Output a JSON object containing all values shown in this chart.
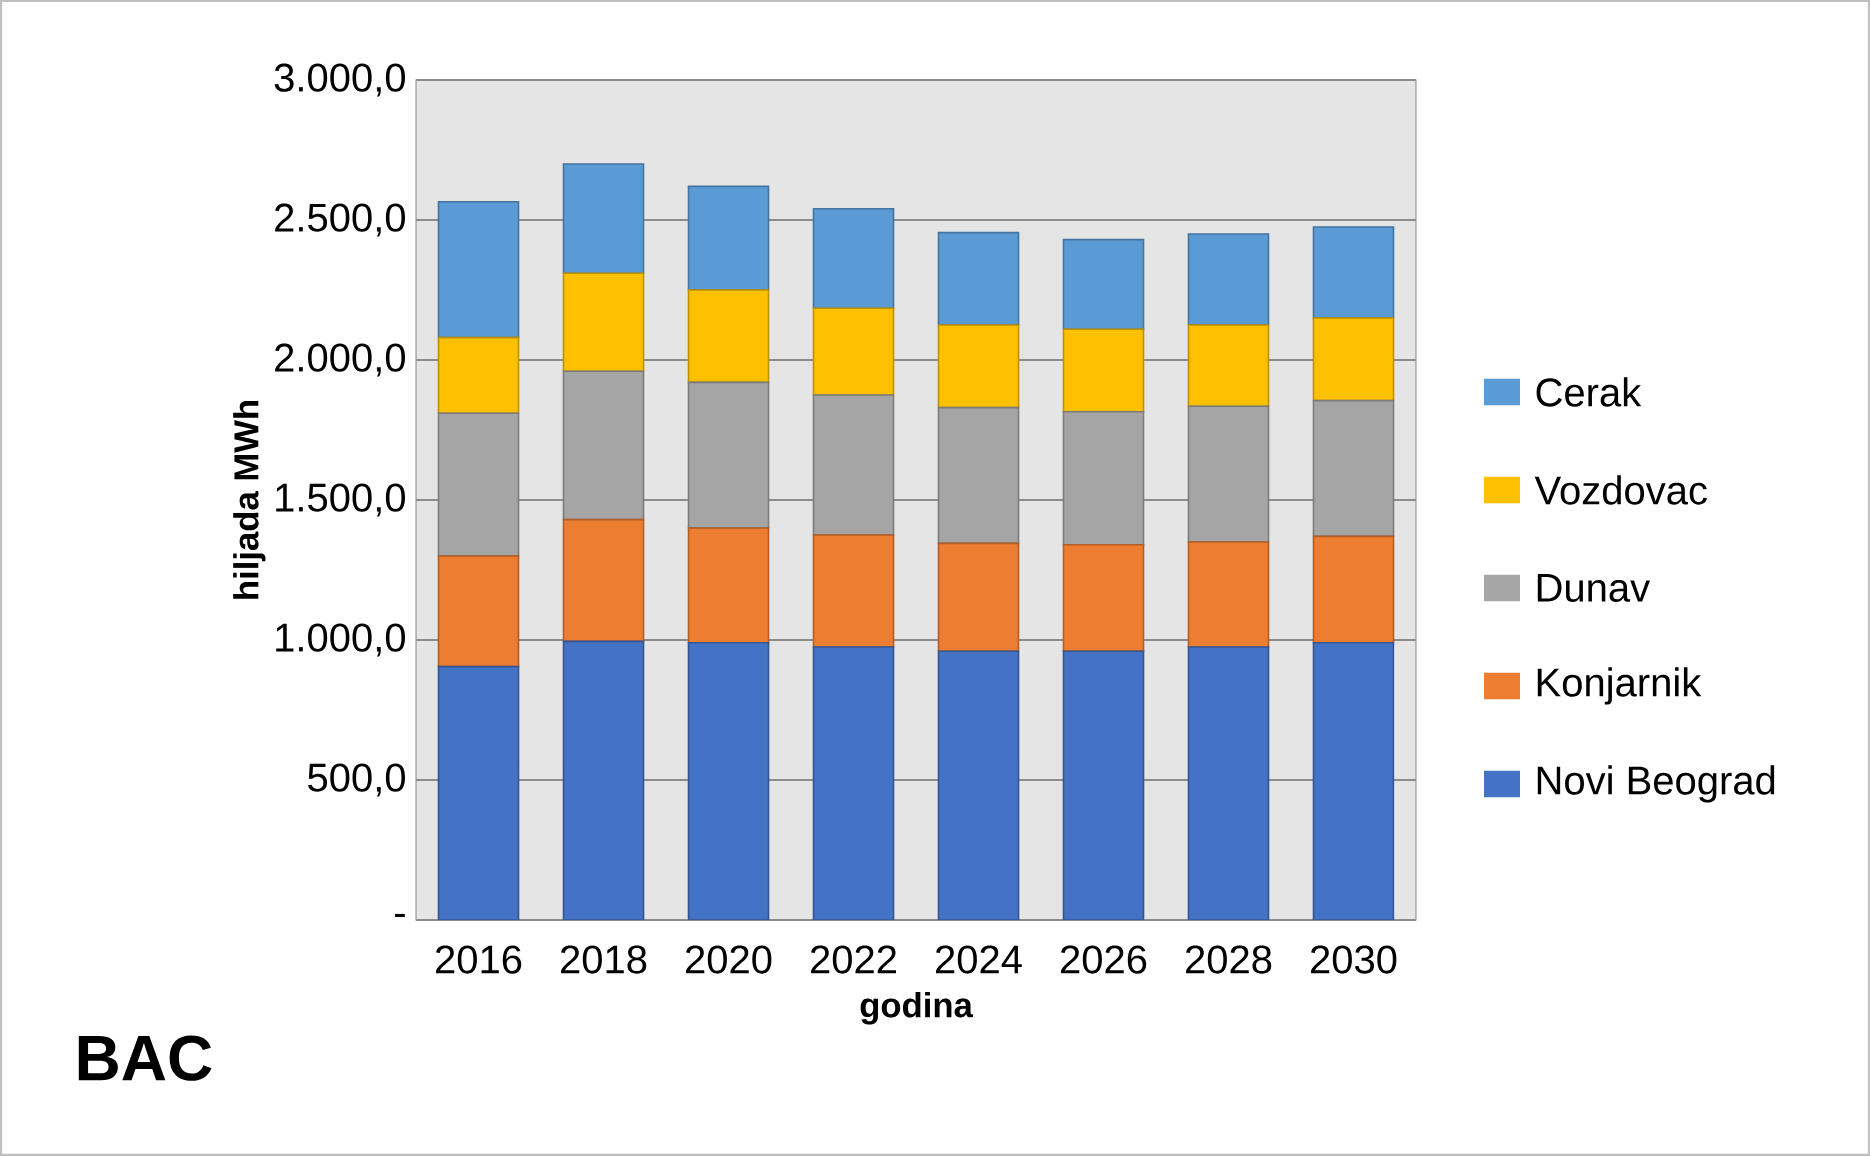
{
  "chart_data": {
    "type": "bar",
    "stacked": true,
    "xlabel": "godina",
    "ylabel": "hiljada MWh",
    "categories": [
      "2016",
      "2018",
      "2020",
      "2022",
      "2024",
      "2026",
      "2028",
      "2030"
    ],
    "series": [
      {
        "name": "Novi Beograd",
        "color": "#4472c4",
        "values": [
          905,
          995,
          990,
          975,
          960,
          960,
          975,
          990
        ]
      },
      {
        "name": "Konjarnik",
        "color": "#ed7d31",
        "values": [
          395,
          435,
          410,
          400,
          385,
          380,
          375,
          380
        ]
      },
      {
        "name": "Dunav",
        "color": "#a5a5a5",
        "values": [
          510,
          530,
          520,
          500,
          485,
          475,
          485,
          485
        ]
      },
      {
        "name": "Vozdovac",
        "color": "#ffc000",
        "values": [
          270,
          350,
          330,
          310,
          295,
          295,
          290,
          295
        ]
      },
      {
        "name": "Cerak",
        "color": "#5b9bd5",
        "values": [
          485,
          390,
          370,
          355,
          330,
          320,
          325,
          325
        ]
      }
    ],
    "ylim": [
      0,
      3000
    ],
    "yticks": [
      {
        "value": 0,
        "label": "-"
      },
      {
        "value": 500,
        "label": "500,0"
      },
      {
        "value": 1000,
        "label": "1.000,0"
      },
      {
        "value": 1500,
        "label": "1.500,0"
      },
      {
        "value": 2000,
        "label": "2.000,0"
      },
      {
        "value": 2500,
        "label": "2.500,0"
      },
      {
        "value": 3000,
        "label": "3.000,0"
      }
    ],
    "grid": "y",
    "legend": "right",
    "annotations": [
      "BAC"
    ]
  }
}
